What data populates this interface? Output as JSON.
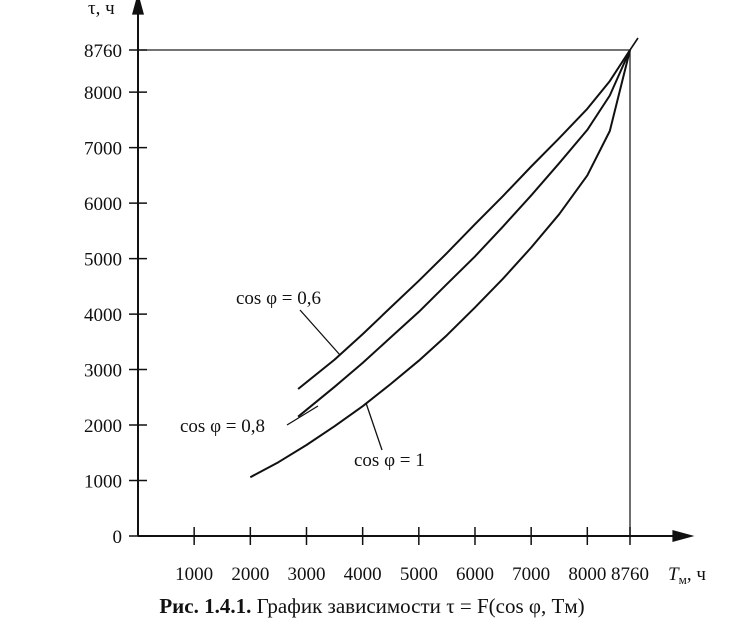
{
  "chart_data": {
    "type": "line",
    "ylabel": "τ, ч",
    "xlabel": "Tм, ч",
    "xlabel_parts": {
      "symbol": "T",
      "subscript": "м",
      "unit": ", ч"
    },
    "x_ticks": [
      1000,
      2000,
      3000,
      4000,
      5000,
      6000,
      7000,
      8000,
      8760
    ],
    "y_ticks": [
      0,
      1000,
      2000,
      3000,
      4000,
      5000,
      6000,
      7000,
      8000,
      8760
    ],
    "xlim": [
      0,
      9800
    ],
    "ylim": [
      0,
      9650
    ],
    "reference_lines": {
      "x": 8760,
      "y": 8760
    },
    "series": [
      {
        "name": "cos φ = 0,6",
        "x": [
          2850,
          3500,
          4000,
          4500,
          5000,
          5500,
          6000,
          6500,
          7000,
          7500,
          8000,
          8400,
          8760
        ],
        "y": [
          2650,
          3180,
          3640,
          4120,
          4600,
          5100,
          5620,
          6130,
          6660,
          7170,
          7700,
          8200,
          8760
        ]
      },
      {
        "name": "cos φ = 0,8",
        "x": [
          2850,
          3500,
          4000,
          4500,
          5000,
          5500,
          6000,
          6500,
          7000,
          7500,
          8000,
          8400,
          8760
        ],
        "y": [
          2150,
          2690,
          3120,
          3580,
          4040,
          4540,
          5040,
          5580,
          6140,
          6720,
          7320,
          7940,
          8760
        ]
      },
      {
        "name": "cos φ = 1",
        "x": [
          2000,
          2500,
          3000,
          3500,
          4000,
          4500,
          5000,
          5500,
          6000,
          6500,
          7000,
          7500,
          8000,
          8400,
          8760
        ],
        "y": [
          1060,
          1330,
          1640,
          1980,
          2340,
          2740,
          3160,
          3620,
          4120,
          4640,
          5200,
          5800,
          6500,
          7300,
          8760
        ]
      }
    ],
    "annotations": [
      {
        "text": "cos φ = 0,6",
        "series": 0
      },
      {
        "text": "cos φ = 0,8",
        "series": 1
      },
      {
        "text": "cos φ = 1",
        "series": 2
      }
    ]
  },
  "caption": {
    "prefix": "Рис. 1.4.1.",
    "text": "График зависимости",
    "formula": "τ = F(cos φ, Tм)"
  }
}
